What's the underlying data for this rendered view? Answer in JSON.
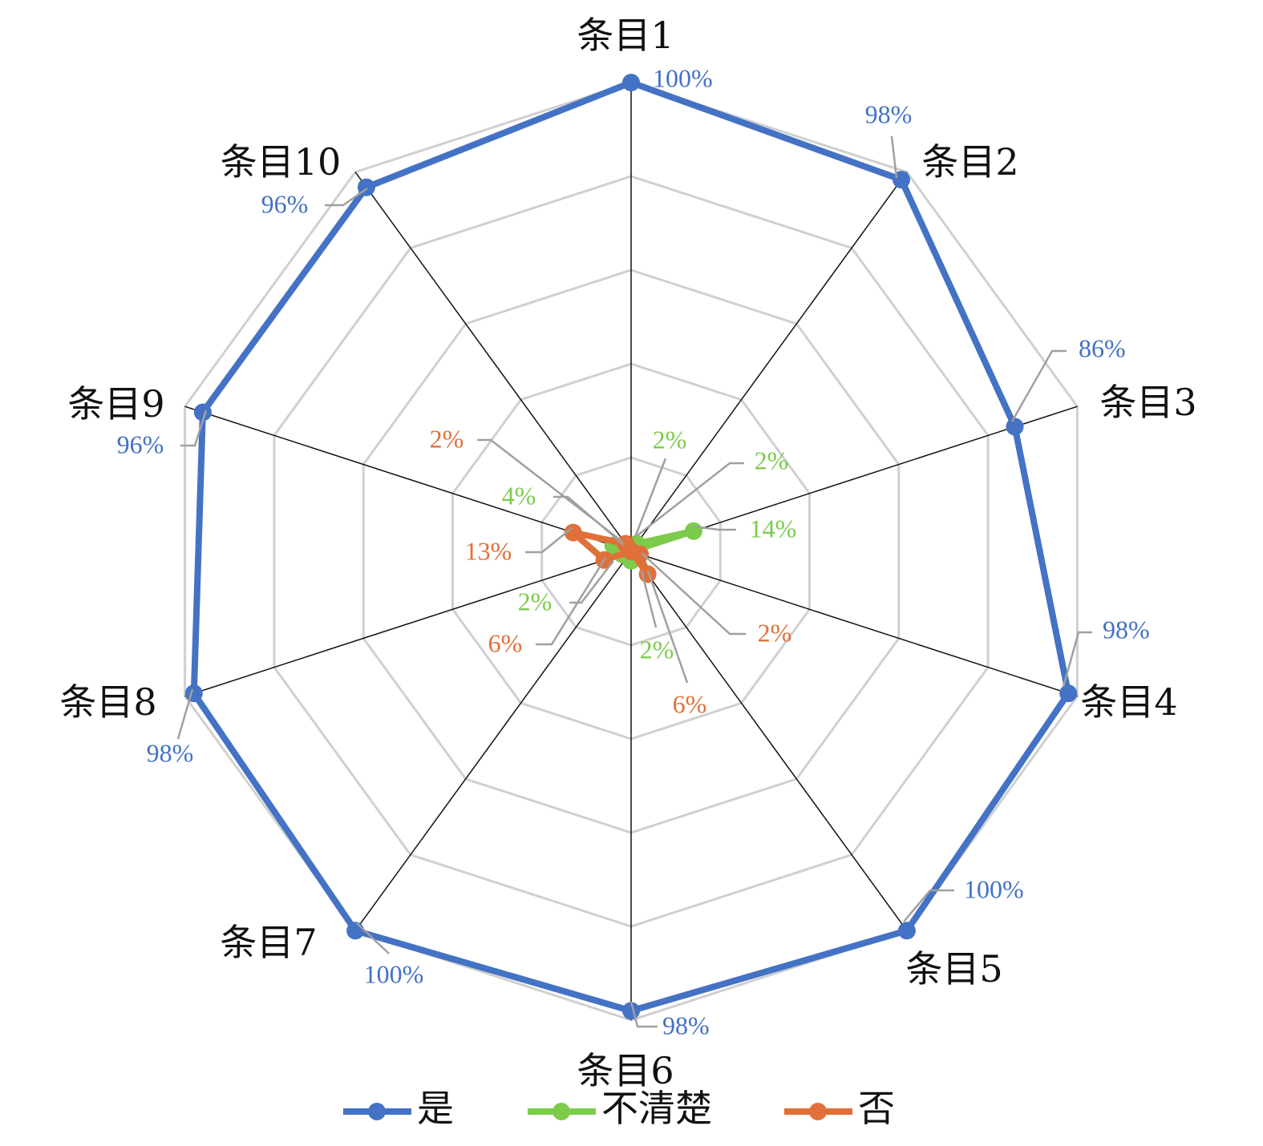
{
  "chart_data": {
    "type": "radar",
    "categories": [
      "条目1",
      "条目2",
      "条目3",
      "条目4",
      "条目5",
      "条目6",
      "条目7",
      "条目8",
      "条目9",
      "条目10"
    ],
    "rlim": [
      0,
      1
    ],
    "grid": true,
    "legend_position": "bottom",
    "series": [
      {
        "name": "是",
        "color": "#4472C4",
        "values": [
          1.0,
          0.98,
          0.86,
          0.98,
          1.0,
          0.98,
          1.0,
          0.98,
          0.96,
          0.96
        ],
        "labels": [
          "100%",
          "98%",
          "86%",
          "98%",
          "100%",
          "98%",
          "100%",
          "98%",
          "96%",
          "96%"
        ]
      },
      {
        "name": "不清楚",
        "color": "#7CCB4B",
        "values": [
          0.0,
          0.02,
          0.14,
          0.0,
          0.0,
          0.02,
          0.0,
          0.02,
          0.04,
          0.0
        ],
        "labels": [
          "",
          "2%",
          "14%",
          "",
          "",
          "2%",
          "",
          "2%",
          "4%",
          ""
        ]
      },
      {
        "name": "否",
        "color": "#E0703A",
        "values": [
          0.0,
          0.0,
          0.0,
          0.02,
          0.06,
          0.0,
          0.0,
          0.06,
          0.13,
          0.02
        ],
        "labels": [
          "",
          "",
          "",
          "2%",
          "6%",
          "",
          "",
          "6%",
          "13%",
          "2%"
        ]
      }
    ]
  }
}
